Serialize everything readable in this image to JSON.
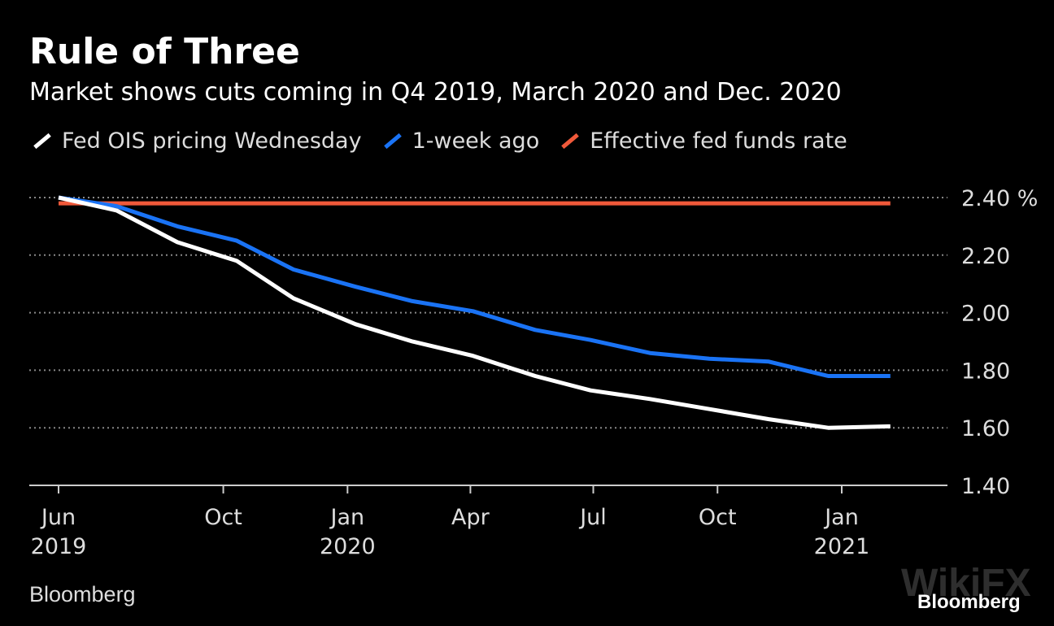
{
  "chart_data": {
    "type": "line",
    "title": "Rule of Three",
    "subtitle": "Market shows cuts coming in Q4 2019, March 2020 and Dec. 2020",
    "ylabel_unit": "%",
    "ylim": [
      1.4,
      2.4
    ],
    "yticks": [
      "1.40",
      "1.60",
      "1.80",
      "2.00",
      "2.20",
      "2.40"
    ],
    "xticks": [
      {
        "date": "2019-06-01",
        "label": "Jun",
        "year": "2019"
      },
      {
        "date": "2019-10-01",
        "label": "Oct",
        "year": ""
      },
      {
        "date": "2020-01-01",
        "label": "Jan",
        "year": "2020"
      },
      {
        "date": "2020-04-01",
        "label": "Apr",
        "year": ""
      },
      {
        "date": "2020-07-01",
        "label": "Jul",
        "year": ""
      },
      {
        "date": "2020-10-01",
        "label": "Oct",
        "year": ""
      },
      {
        "date": "2021-01-01",
        "label": "Jan",
        "year": "2021"
      }
    ],
    "xlim": [
      "2019-05-20",
      "2021-04-20"
    ],
    "grid": "horizontal dotted",
    "legend_placement": "top",
    "x": [
      "2019-06-01",
      "2019-07-14",
      "2019-08-28",
      "2019-10-11",
      "2019-11-22",
      "2020-01-07",
      "2020-02-18",
      "2020-04-03",
      "2020-05-19",
      "2020-06-29",
      "2020-08-12",
      "2020-09-25",
      "2020-11-08",
      "2020-12-22",
      "2021-02-06"
    ],
    "series": [
      {
        "name": "Fed OIS pricing Wednesday",
        "color": "#ffffff",
        "values": [
          2.4,
          2.355,
          2.245,
          2.18,
          2.05,
          1.96,
          1.9,
          1.85,
          1.78,
          1.73,
          1.7,
          1.665,
          1.63,
          1.6,
          1.605
        ]
      },
      {
        "name": "1-week ago",
        "color": "#1a73f5",
        "values": [
          2.4,
          2.37,
          2.3,
          2.25,
          2.15,
          2.09,
          2.04,
          2.005,
          1.94,
          1.905,
          1.86,
          1.84,
          1.83,
          1.78,
          1.78
        ]
      },
      {
        "name": "Effective fed funds rate",
        "color": "#f0593a",
        "values": [
          2.38,
          2.38,
          2.38,
          2.38,
          2.38,
          2.38,
          2.38,
          2.38,
          2.38,
          2.38,
          2.38,
          2.38,
          2.38,
          2.38,
          2.38
        ]
      }
    ]
  },
  "source": "Bloomberg",
  "brand": "Bloomberg",
  "watermark": "WikiFX"
}
